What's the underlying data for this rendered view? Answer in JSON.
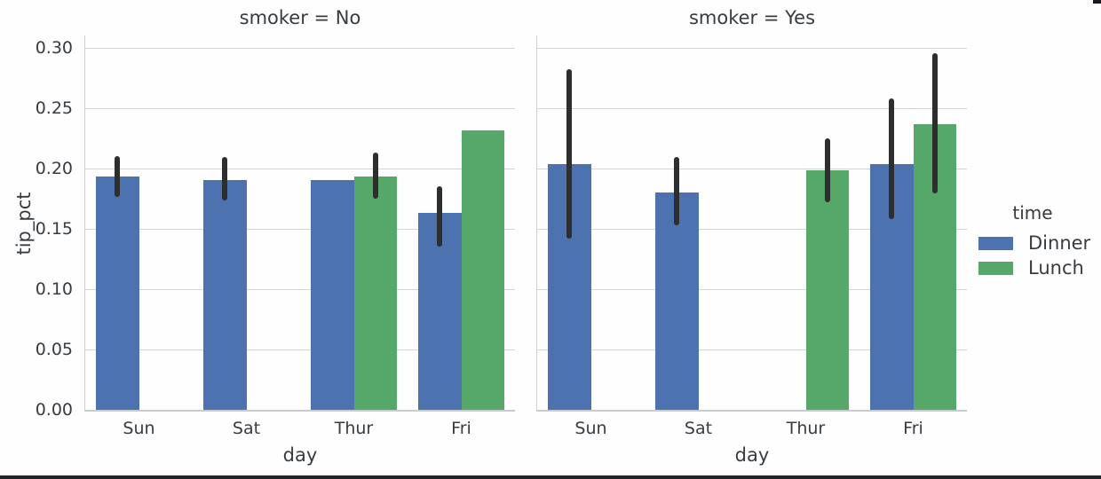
{
  "chart_data": {
    "type": "bar",
    "xlabel": "day",
    "ylabel": "tip_pct",
    "categories": [
      "Sun",
      "Sat",
      "Thur",
      "Fri"
    ],
    "yticks": [
      "0.00",
      "0.05",
      "0.10",
      "0.15",
      "0.20",
      "0.25",
      "0.30"
    ],
    "ylim": [
      0,
      0.31
    ],
    "grid": true,
    "legend": {
      "title": "time",
      "position": "right",
      "entries": [
        {
          "label": "Dinner",
          "color": "#4c72b0"
        },
        {
          "label": "Lunch",
          "color": "#55a868"
        }
      ]
    },
    "error_bar_color": "#2e2e2e",
    "facets": [
      {
        "title": "smoker = No",
        "groups": [
          {
            "category": "Sun",
            "bars": [
              {
                "series": "Dinner",
                "value": 0.1934,
                "ci": [
                  0.176,
                  0.21
                ]
              }
            ]
          },
          {
            "category": "Sat",
            "bars": [
              {
                "series": "Dinner",
                "value": 0.1903,
                "ci": [
                  0.173,
                  0.209
                ]
              }
            ]
          },
          {
            "category": "Thur",
            "bars": [
              {
                "series": "Dinner",
                "value": 0.1901,
                "ci": null
              },
              {
                "series": "Lunch",
                "value": 0.1935,
                "ci": [
                  0.175,
                  0.213
                ]
              }
            ]
          },
          {
            "category": "Fri",
            "bars": [
              {
                "series": "Dinner",
                "value": 0.1633,
                "ci": [
                  0.135,
                  0.185
                ]
              },
              {
                "series": "Lunch",
                "value": 0.2312,
                "ci": null
              }
            ]
          }
        ]
      },
      {
        "title": "smoker = Yes",
        "groups": [
          {
            "category": "Sun",
            "bars": [
              {
                "series": "Dinner",
                "value": 0.2037,
                "ci": [
                  0.142,
                  0.282
                ]
              }
            ]
          },
          {
            "category": "Sat",
            "bars": [
              {
                "series": "Dinner",
                "value": 0.1799,
                "ci": [
                  0.153,
                  0.209
                ]
              }
            ]
          },
          {
            "category": "Thur",
            "bars": [
              {
                "series": "Lunch",
                "value": 0.1984,
                "ci": [
                  0.172,
                  0.225
                ]
              }
            ]
          },
          {
            "category": "Fri",
            "bars": [
              {
                "series": "Dinner",
                "value": 0.2036,
                "ci": [
                  0.158,
                  0.258
                ]
              },
              {
                "series": "Lunch",
                "value": 0.2368,
                "ci": [
                  0.179,
                  0.295
                ]
              }
            ]
          }
        ]
      }
    ]
  }
}
